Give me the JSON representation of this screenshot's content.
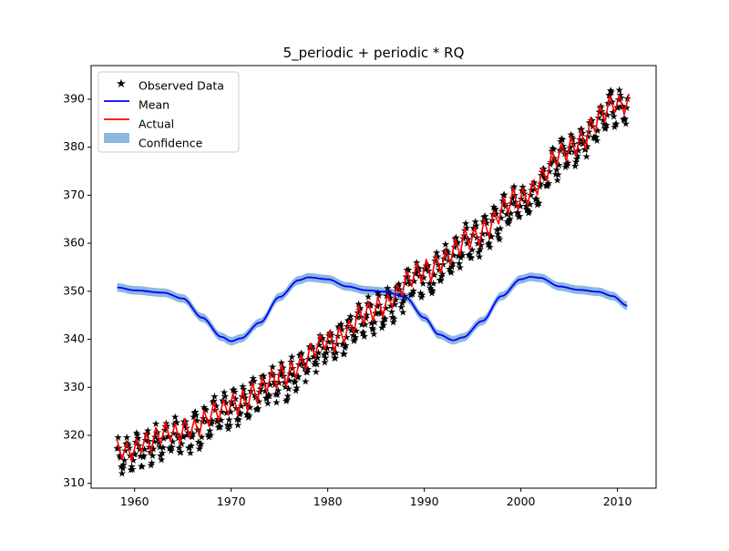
{
  "chart_data": {
    "type": "line",
    "title": "5_periodic + periodic * RQ",
    "xlabel": "",
    "ylabel": "",
    "xlim": [
      1955.5,
      2014
    ],
    "ylim": [
      309,
      397
    ],
    "x_ticks": [
      1960,
      1970,
      1980,
      1990,
      2000,
      2010
    ],
    "y_ticks": [
      310,
      320,
      330,
      340,
      350,
      360,
      370,
      380,
      390
    ],
    "legend": {
      "position": "top-left",
      "entries": [
        "Observed Data",
        "Mean",
        "Actual",
        "Confidence"
      ]
    },
    "colors": {
      "observed": "#000000",
      "mean": "#0000ff",
      "actual": "#ff0000",
      "confidence": "#8db8e0"
    },
    "observed": {
      "name": "Observed Data",
      "start_year": 1958.2,
      "end_year": 2011.0,
      "samples_per_year": 12,
      "trend_points": [
        [
          1958,
          315.5
        ],
        [
          1965,
          320.0
        ],
        [
          1970,
          325.5
        ],
        [
          1975,
          331.0
        ],
        [
          1980,
          338.5
        ],
        [
          1985,
          345.5
        ],
        [
          1990,
          353.0
        ],
        [
          1995,
          360.5
        ],
        [
          2000,
          368.5
        ],
        [
          2005,
          379.0
        ],
        [
          2010,
          388.5
        ]
      ],
      "seasonal_amplitude": 3.2,
      "noise": 1.2
    },
    "actual": {
      "name": "Actual",
      "start_year": 1958.2,
      "end_year": 2011.0,
      "samples_per_year": 2,
      "trend_points": [
        [
          1958,
          316.5
        ],
        [
          1965,
          321.0
        ],
        [
          1970,
          326.0
        ],
        [
          1975,
          332.0
        ],
        [
          1980,
          339.5
        ],
        [
          1985,
          346.5
        ],
        [
          1990,
          354.0
        ],
        [
          1995,
          361.5
        ],
        [
          2000,
          369.5
        ],
        [
          2005,
          379.5
        ],
        [
          2010,
          389.0
        ]
      ],
      "seasonal_amplitude": 2.2
    },
    "mean": {
      "name": "Mean",
      "points": [
        [
          1958.2,
          350.8
        ],
        [
          1960,
          350.2
        ],
        [
          1963,
          349.7
        ],
        [
          1965,
          348.5
        ],
        [
          1967,
          344.5
        ],
        [
          1969,
          340.5
        ],
        [
          1970,
          339.6
        ],
        [
          1971,
          340.2
        ],
        [
          1973,
          343.5
        ],
        [
          1975,
          348.8
        ],
        [
          1977,
          352.3
        ],
        [
          1978,
          352.9
        ],
        [
          1980,
          352.5
        ],
        [
          1982,
          351.0
        ],
        [
          1984,
          350.2
        ],
        [
          1986,
          349.9
        ],
        [
          1988,
          348.8
        ],
        [
          1990,
          344.5
        ],
        [
          1991.5,
          341.0
        ],
        [
          1993,
          339.8
        ],
        [
          1994,
          340.4
        ],
        [
          1996,
          343.8
        ],
        [
          1998,
          349.0
        ],
        [
          2000,
          352.5
        ],
        [
          2001,
          353.0
        ],
        [
          2002,
          352.8
        ],
        [
          2004,
          351.0
        ],
        [
          2006,
          350.3
        ],
        [
          2008,
          349.9
        ],
        [
          2009.5,
          349.0
        ],
        [
          2011,
          347.0
        ]
      ],
      "band_halfwidth": 0.9
    }
  }
}
